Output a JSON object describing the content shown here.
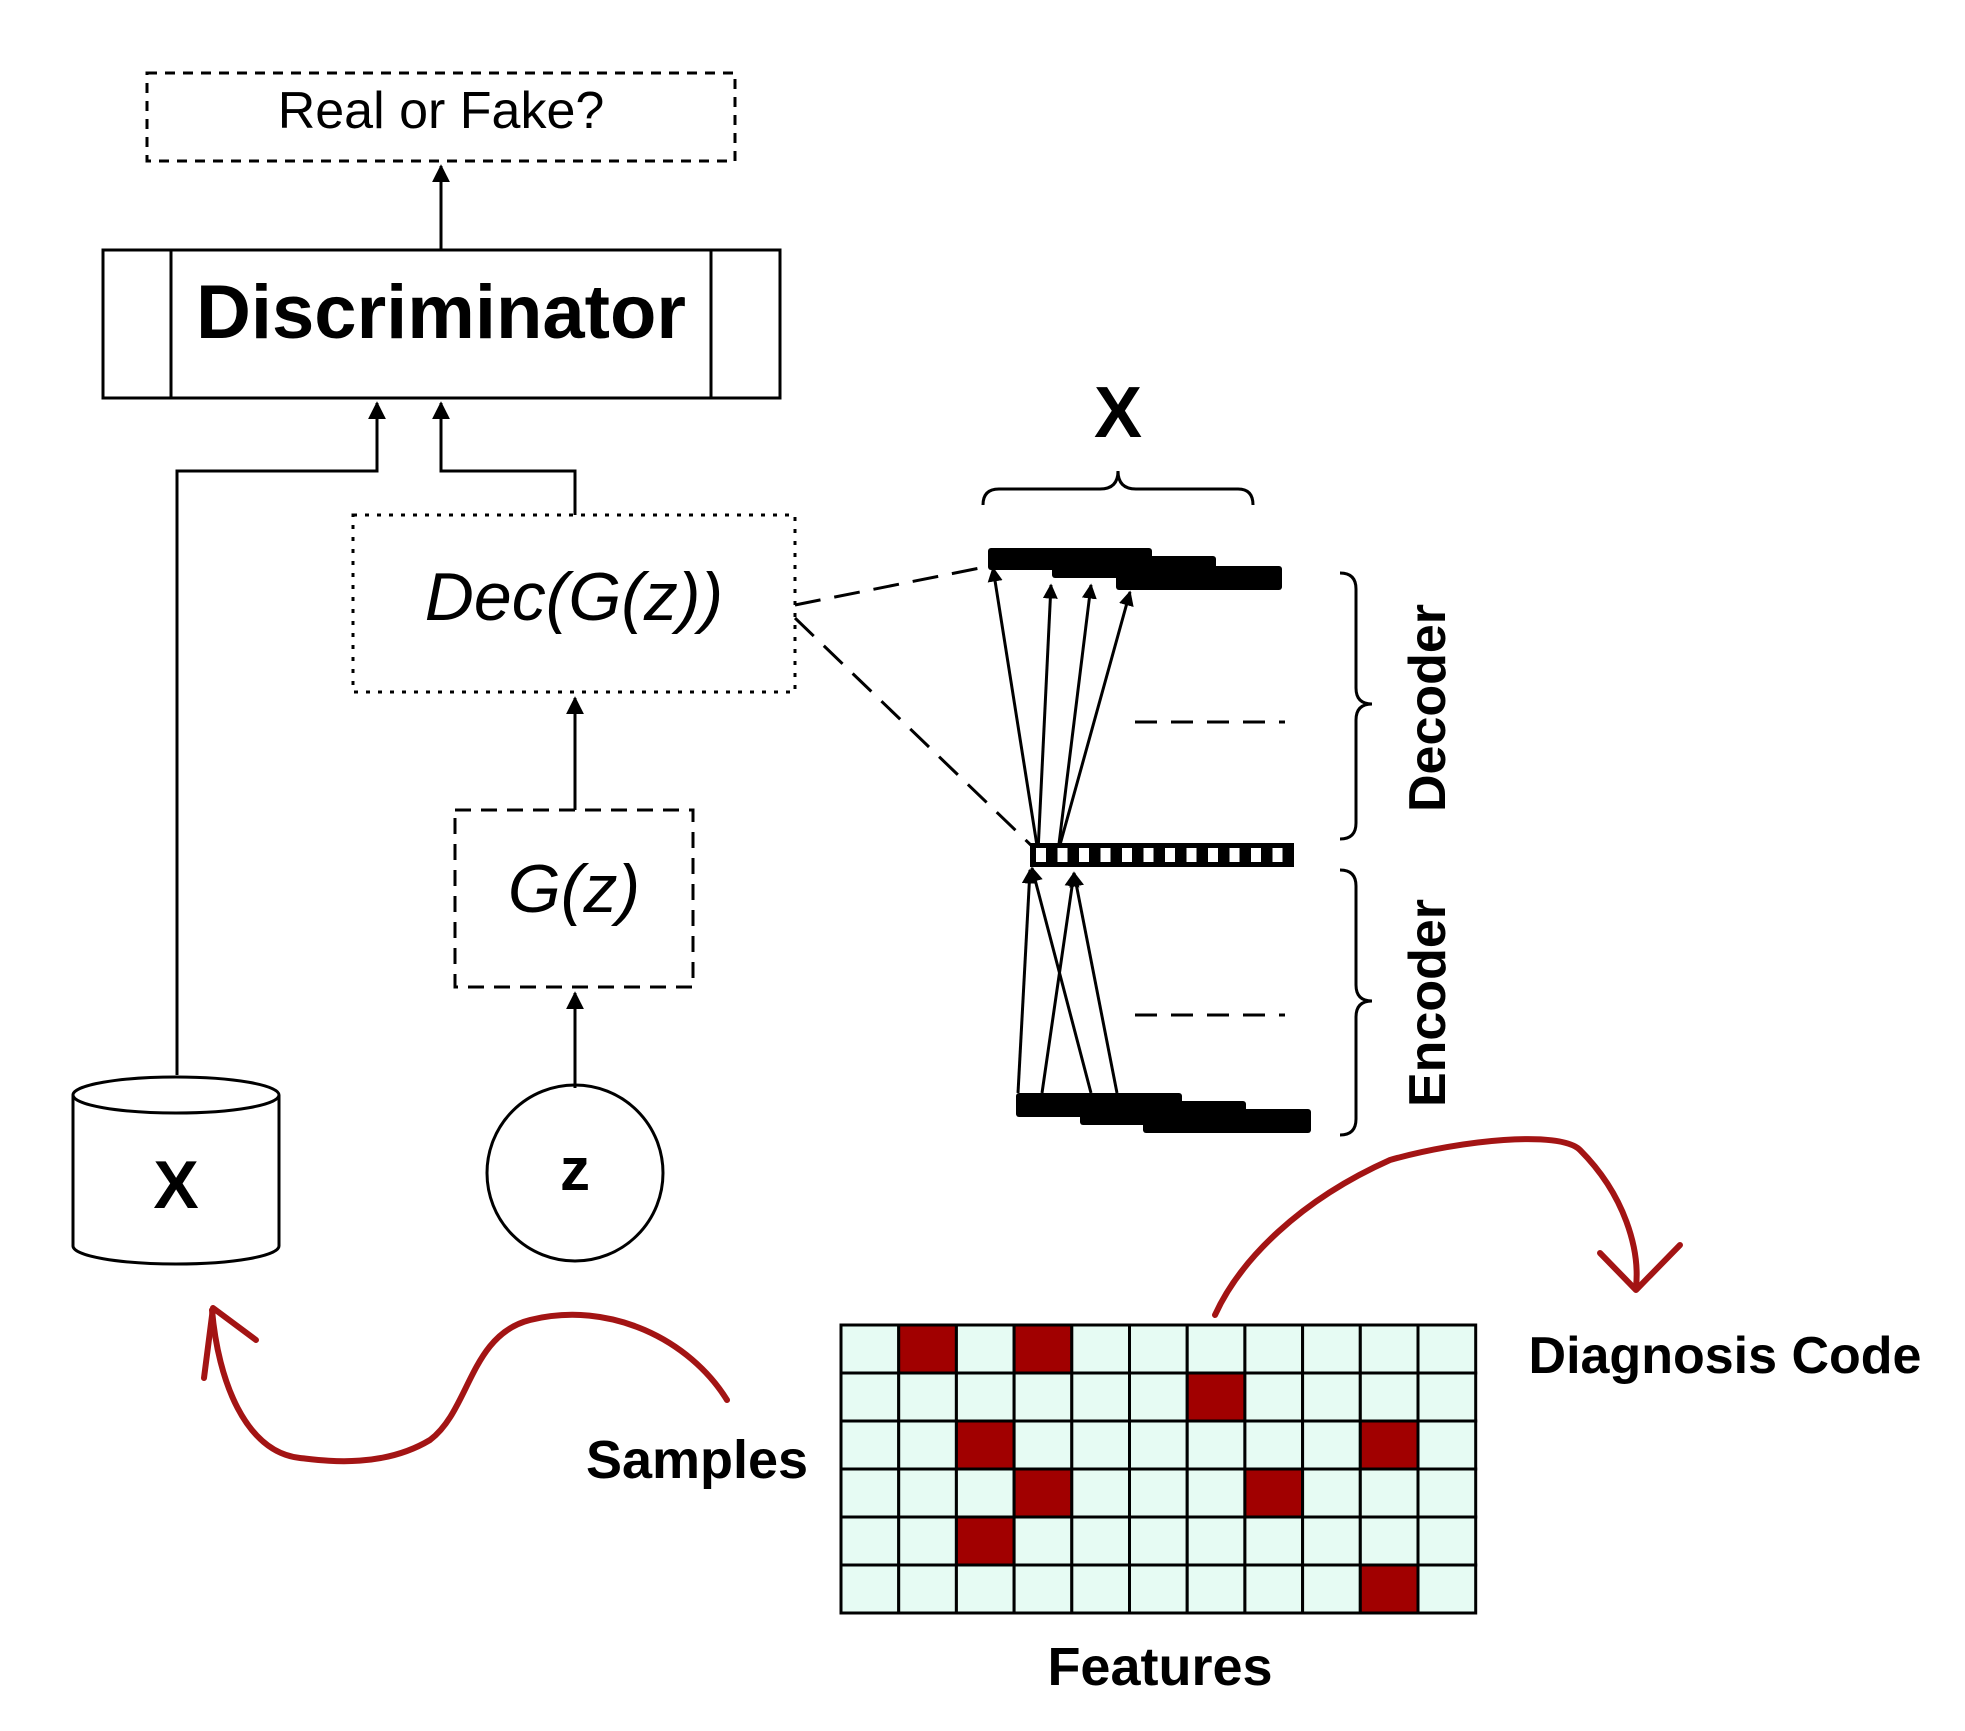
{
  "output_box": {
    "label": "Real or Fake?"
  },
  "discriminator": {
    "label": "Discriminator"
  },
  "decoded_box": {
    "label": "Dec(G(z))"
  },
  "generator_box": {
    "label": "G(z)"
  },
  "noise_node": {
    "label": "z"
  },
  "data_store": {
    "label": "X"
  },
  "autoencoder": {
    "output_label": "X",
    "decoder_label": "Decoder",
    "encoder_label": "Encoder"
  },
  "matrix": {
    "rows": 6,
    "cols": 11,
    "highlighted_cells": [
      [
        0,
        1
      ],
      [
        0,
        3
      ],
      [
        1,
        6
      ],
      [
        2,
        2
      ],
      [
        2,
        9
      ],
      [
        3,
        3
      ],
      [
        3,
        7
      ],
      [
        4,
        2
      ],
      [
        5,
        9
      ]
    ],
    "cell_color": "#e6fbf3",
    "highlight_color": "#a10000",
    "rows_label": "Samples",
    "cols_label": "Features",
    "annotation": "Diagnosis Code"
  },
  "colors": {
    "arrow_red": "#a31414",
    "samples_text": "#9b1414",
    "diagnosis_text": "#1f1a9c"
  }
}
